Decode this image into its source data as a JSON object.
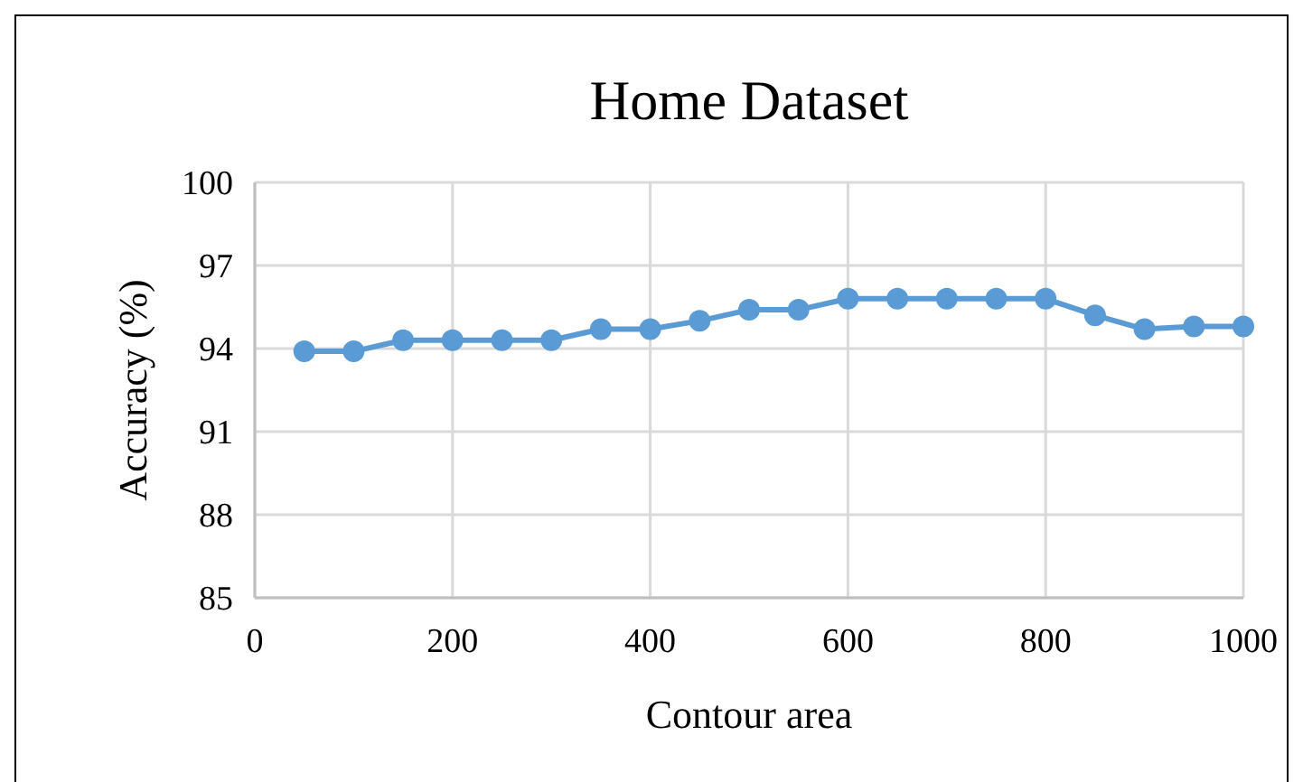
{
  "chart_data": {
    "type": "line",
    "title": "Home Dataset",
    "xlabel": "Contour area",
    "ylabel": "Accuracy (%)",
    "x": [
      50,
      100,
      150,
      200,
      250,
      300,
      350,
      400,
      450,
      500,
      550,
      600,
      650,
      700,
      750,
      800,
      850,
      900,
      950,
      1000
    ],
    "series": [
      {
        "color": "#5b9bd5",
        "values": [
          93.9,
          93.9,
          94.3,
          94.3,
          94.3,
          94.3,
          94.7,
          94.7,
          95.0,
          95.4,
          95.4,
          95.8,
          95.8,
          95.8,
          95.8,
          95.8,
          95.2,
          94.7,
          94.8,
          94.8
        ]
      }
    ],
    "xlim": [
      0,
      1000
    ],
    "xticks": [
      0,
      200,
      400,
      600,
      800,
      1000
    ],
    "ylim": [
      85,
      100
    ],
    "yticks": [
      85,
      88,
      91,
      94,
      97,
      100
    ],
    "grid": true,
    "marker": "circle",
    "line_style": "solid"
  }
}
